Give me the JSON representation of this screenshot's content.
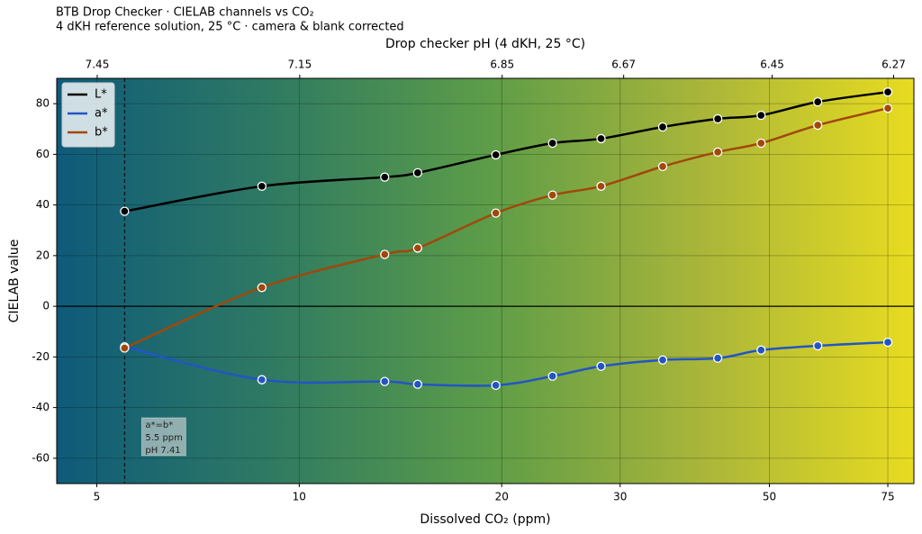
{
  "chart_data": {
    "type": "line",
    "title": "BTB Drop Checker  ·  CIELAB channels vs CO₂",
    "subtitle": "4 dKH reference solution, 25 °C  ·  camera & blank corrected",
    "x_label": "Dissolved CO₂  (ppm)",
    "y_label": "CIELAB value",
    "x2_label": "Drop checker pH  (4 dKH, 25 °C)",
    "x": [
      5.5,
      8.8,
      13.4,
      15.0,
      19.6,
      23.8,
      28.1,
      34.7,
      41.9,
      48.6,
      59.0,
      75.0
    ],
    "series": [
      {
        "name": "L*",
        "color": "#000000",
        "values": [
          37.5,
          47.4,
          51.0,
          52.7,
          59.8,
          64.4,
          66.2,
          70.8,
          74.0,
          75.4,
          80.7,
          84.6
        ]
      },
      {
        "name": "a*",
        "color": "#2255c4",
        "values": [
          -16.0,
          -29.0,
          -29.7,
          -30.8,
          -31.2,
          -27.6,
          -23.7,
          -21.2,
          -20.5,
          -17.3,
          -15.6,
          -14.2
        ]
      },
      {
        "name": "b*",
        "color": "#a0480a",
        "values": [
          -16.5,
          7.4,
          20.5,
          23.0,
          36.8,
          43.9,
          47.4,
          55.2,
          60.9,
          64.4,
          71.5,
          78.2
        ]
      }
    ],
    "x_scale": "log",
    "xlim": [
      4.36,
      82
    ],
    "xticks": [
      5,
      10,
      20,
      30,
      50,
      75
    ],
    "x2lim": [
      7.51,
      6.24
    ],
    "x2ticks": [
      7.45,
      7.15,
      6.85,
      6.67,
      6.45,
      6.27
    ],
    "ylim": [
      -70,
      90
    ],
    "yticks": [
      -60,
      -40,
      -20,
      0,
      20,
      40,
      60,
      80
    ],
    "grid": true,
    "hline": 0,
    "vline": 5.5,
    "annotation": [
      "a*=b*",
      "5.5 ppm",
      "pH 7.41"
    ],
    "legend": "upper-left",
    "background_colors": [
      "#0e5a7a",
      "#2f7a62",
      "#5c9c48",
      "#a9b53a",
      "#e8dc20"
    ]
  }
}
